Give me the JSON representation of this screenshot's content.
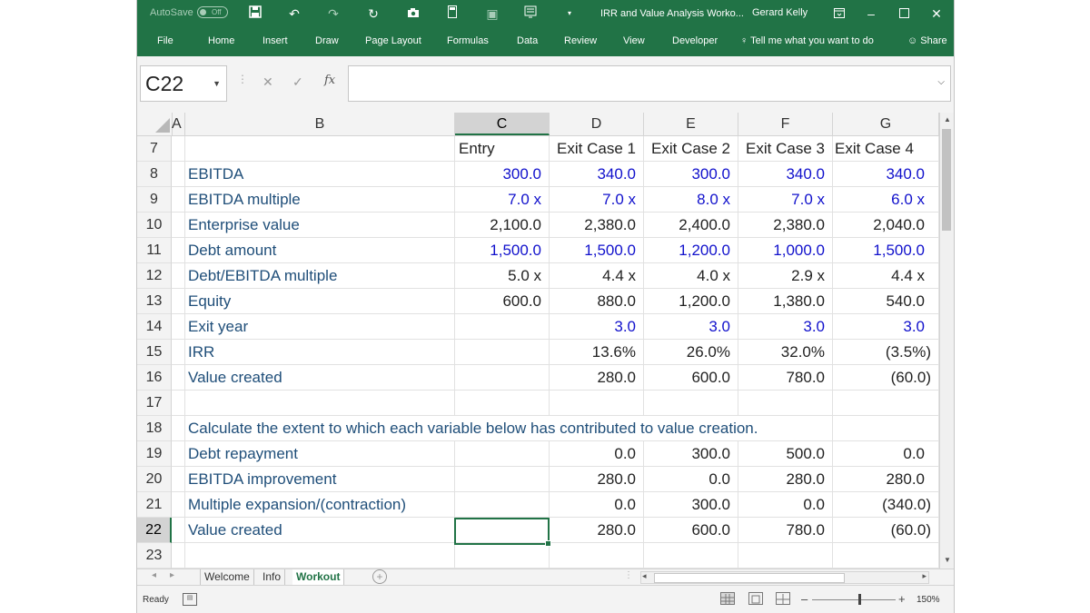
{
  "titlebar": {
    "autosave_label": "AutoSave",
    "autosave_state": "Off",
    "doc_title": "IRR and Value Analysis Worko...",
    "user": "Gerard Kelly"
  },
  "ribbon": {
    "tabs": [
      "File",
      "Home",
      "Insert",
      "Draw",
      "Page Layout",
      "Formulas",
      "Data",
      "Review",
      "View",
      "Developer"
    ],
    "tell_me": "Tell me what you want to do",
    "share": "Share"
  },
  "formula_bar": {
    "name_box": "C22",
    "content": ""
  },
  "columns": [
    "A",
    "B",
    "C",
    "D",
    "E",
    "F",
    "G"
  ],
  "rows": {
    "r7": {
      "num": "7",
      "b": "",
      "c": "Entry",
      "d": "Exit Case 1",
      "e": "Exit Case 2",
      "f": "Exit Case 3",
      "g": "Exit Case 4"
    },
    "r8": {
      "num": "8",
      "b": "EBITDA",
      "c": "300.0",
      "d": "340.0",
      "e": "300.0",
      "f": "340.0",
      "g": "340.0"
    },
    "r9": {
      "num": "9",
      "b": "EBITDA multiple",
      "c": "7.0 x",
      "d": "7.0 x",
      "e": "8.0 x",
      "f": "7.0 x",
      "g": "6.0 x"
    },
    "r10": {
      "num": "10",
      "b": "Enterprise value",
      "c": "2,100.0",
      "d": "2,380.0",
      "e": "2,400.0",
      "f": "2,380.0",
      "g": "2,040.0"
    },
    "r11": {
      "num": "11",
      "b": "Debt amount",
      "c": "1,500.0",
      "d": "1,500.0",
      "e": "1,200.0",
      "f": "1,000.0",
      "g": "1,500.0"
    },
    "r12": {
      "num": "12",
      "b": "Debt/EBITDA multiple",
      "c": "5.0 x",
      "d": "4.4 x",
      "e": "4.0 x",
      "f": "2.9 x",
      "g": "4.4 x"
    },
    "r13": {
      "num": "13",
      "b": "Equity",
      "c": "600.0",
      "d": "880.0",
      "e": "1,200.0",
      "f": "1,380.0",
      "g": "540.0"
    },
    "r14": {
      "num": "14",
      "b": "Exit year",
      "c": "",
      "d": "3.0",
      "e": "3.0",
      "f": "3.0",
      "g": "3.0"
    },
    "r15": {
      "num": "15",
      "b": "IRR",
      "c": "",
      "d": "13.6%",
      "e": "26.0%",
      "f": "32.0%",
      "g": "(3.5%)"
    },
    "r16": {
      "num": "16",
      "b": "Value created",
      "c": "",
      "d": "280.0",
      "e": "600.0",
      "f": "780.0",
      "g": "(60.0)"
    },
    "r17": {
      "num": "17"
    },
    "r18": {
      "num": "18",
      "b": "Calculate the extent to which each variable below has contributed to value creation."
    },
    "r19": {
      "num": "19",
      "b": "Debt repayment",
      "c": "",
      "d": "0.0",
      "e": "300.0",
      "f": "500.0",
      "g": "0.0"
    },
    "r20": {
      "num": "20",
      "b": "EBITDA improvement",
      "c": "",
      "d": "280.0",
      "e": "0.0",
      "f": "280.0",
      "g": "280.0"
    },
    "r21": {
      "num": "21",
      "b": "Multiple expansion/(contraction)",
      "c": "",
      "d": "0.0",
      "e": "300.0",
      "f": "0.0",
      "g": "(340.0)"
    },
    "r22": {
      "num": "22",
      "b": "Value created",
      "c": "",
      "d": "280.0",
      "e": "600.0",
      "f": "780.0",
      "g": "(60.0)"
    },
    "r23": {
      "num": "23"
    }
  },
  "sheets": [
    "Welcome",
    "Info",
    "Workout"
  ],
  "active_sheet": "Workout",
  "status": {
    "ready": "Ready",
    "zoom": "150%"
  },
  "colors": {
    "excel_green": "#217346",
    "input_blue": "#1111cc",
    "label_navy": "#1f4e79"
  }
}
